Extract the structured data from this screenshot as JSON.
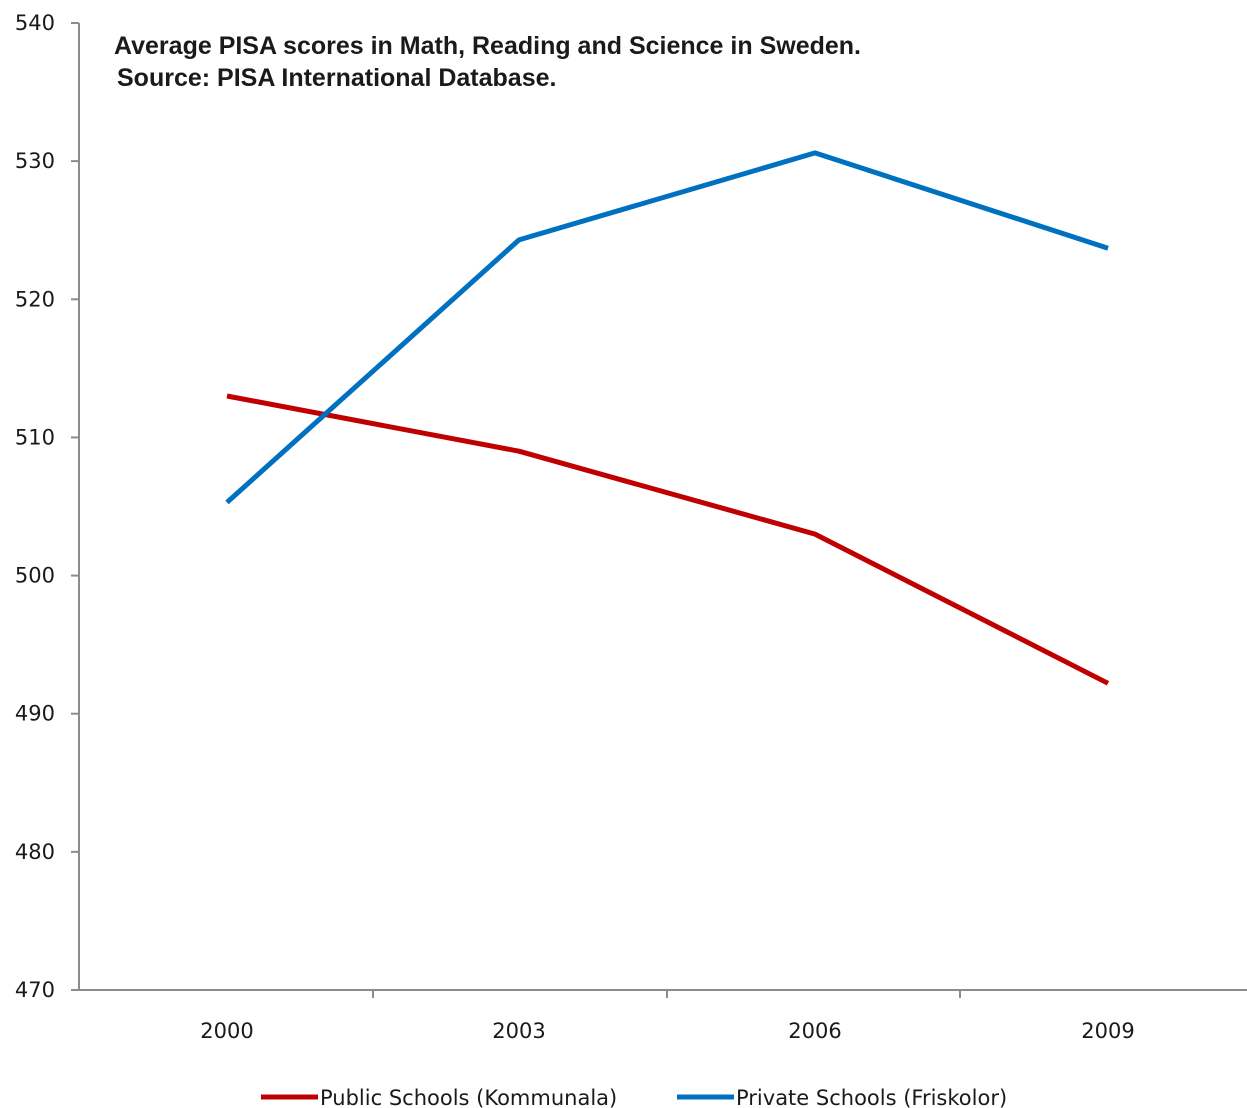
{
  "chart_data": {
    "type": "line",
    "title": "Average PISA scores in Math, Reading and Science in Sweden.",
    "subtitle": "Source: PISA International Database.",
    "xlabel": "",
    "ylabel": "",
    "categories": [
      "2000",
      "2003",
      "2006",
      "2009"
    ],
    "ylim": [
      470,
      540
    ],
    "yticks": [
      470,
      480,
      490,
      500,
      510,
      520,
      530,
      540
    ],
    "grid": false,
    "legend_position": "bottom",
    "series": [
      {
        "name": "Public Schools (Kommunala)",
        "color": "#c00000",
        "values": [
          513,
          509,
          503,
          492.2
        ]
      },
      {
        "name": "Private Schools (Friskolor)",
        "color": "#0070c0",
        "values": [
          505.3,
          524.3,
          530.6,
          523.7
        ]
      }
    ]
  }
}
